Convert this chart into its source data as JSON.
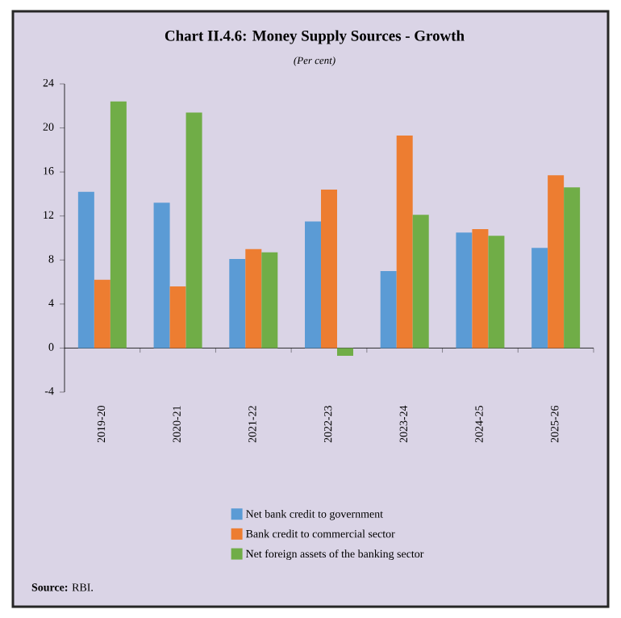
{
  "chart_data": {
    "type": "bar",
    "title": "Chart II.4.6: Money Supply Sources - Growth",
    "subtitle": "(Per cent)",
    "categories": [
      "2019-20",
      "2020-21",
      "2021-22",
      "2022-23",
      "2023-24",
      "2024-25",
      "2025-26"
    ],
    "series": [
      {
        "name": "Net bank credit to government",
        "color": "#5b9bd5",
        "values": [
          14.2,
          13.2,
          8.1,
          11.5,
          7.0,
          10.5,
          9.1
        ]
      },
      {
        "name": "Bank credit to commercial sector",
        "color": "#ed7d31",
        "values": [
          6.2,
          5.6,
          9.0,
          14.4,
          19.3,
          10.8,
          15.7
        ]
      },
      {
        "name": "Net foreign assets of the banking sector",
        "color": "#70ad47",
        "values": [
          22.4,
          21.4,
          8.7,
          -0.7,
          12.1,
          10.2,
          14.6
        ]
      }
    ],
    "ylim": [
      -4,
      24
    ],
    "yticks": [
      -4,
      0,
      4,
      8,
      12,
      16,
      20,
      24
    ],
    "legend": "bottom",
    "annotations": [
      "**Source:** RBI."
    ]
  }
}
